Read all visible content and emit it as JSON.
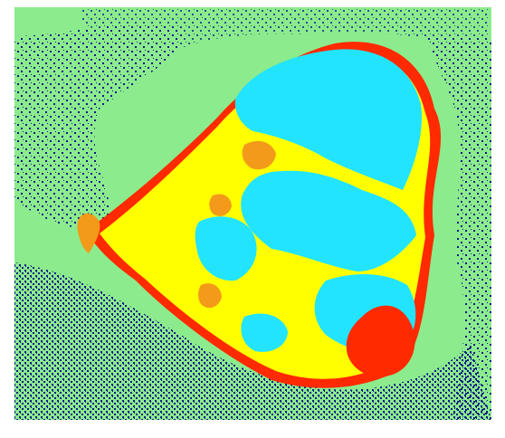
{
  "image": {
    "kind": "segmentation-map",
    "palette": {
      "background": "#8CEB8C",
      "noise": "#0A1A8A",
      "yellow_region": "#FFFF00",
      "cyan_region": "#22E4FF",
      "red_region": "#FF2A00",
      "orange_region": "#F39A1A"
    }
  }
}
